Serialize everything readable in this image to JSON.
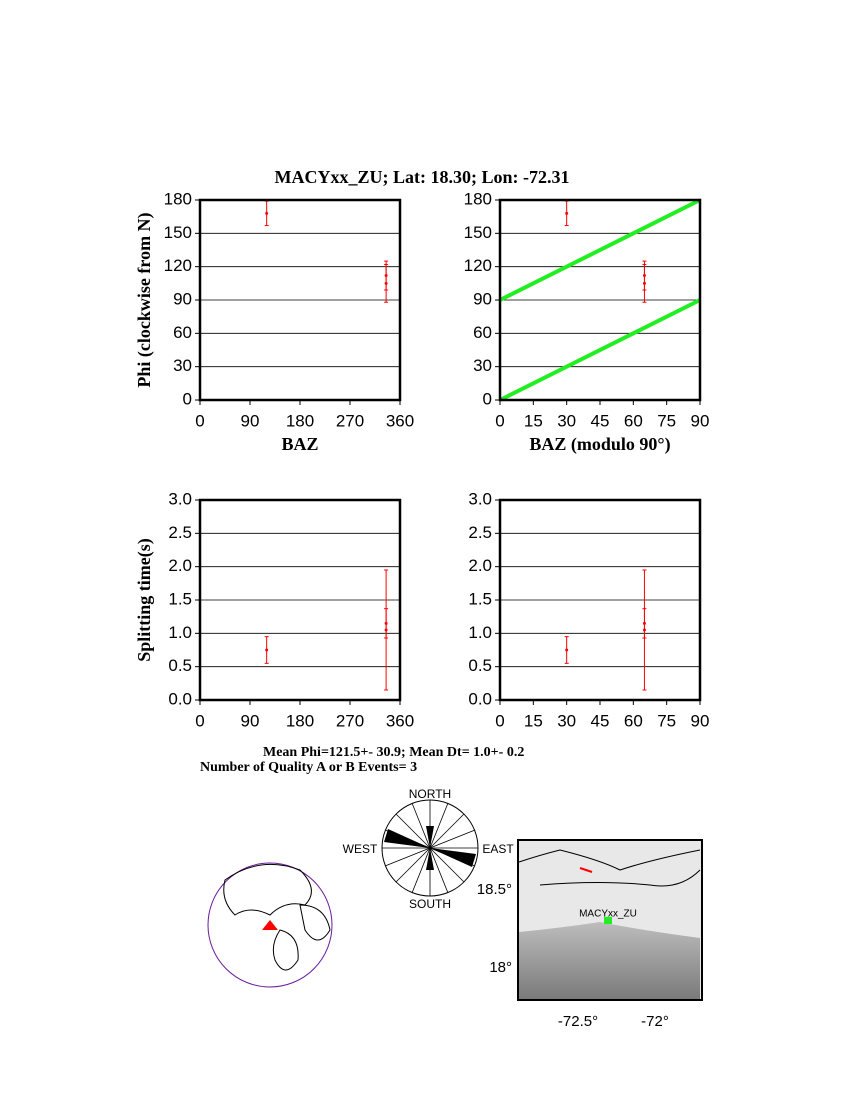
{
  "title": "MACYxx_ZU; Lat:  18.30;  Lon:  -72.31",
  "chart_data": [
    {
      "type": "scatter",
      "xlabel": "BAZ",
      "ylabel": "Phi (clockwise from N)",
      "xlim": [
        0,
        360
      ],
      "xticks": [
        0,
        90,
        180,
        270,
        360
      ],
      "ylim": [
        0,
        180
      ],
      "yticks": [
        0,
        30,
        60,
        90,
        120,
        150,
        180
      ],
      "grid": true,
      "series": [
        {
          "type": "errorbar",
          "color": "#ff0000",
          "x": [
            120,
            335,
            335
          ],
          "values": [
            168,
            112,
            105
          ],
          "errors": [
            11,
            13,
            17
          ]
        }
      ]
    },
    {
      "type": "scatter",
      "xlabel": "BAZ (modulo 90°)",
      "xlim": [
        0,
        90
      ],
      "xticks": [
        0,
        15,
        30,
        45,
        60,
        75,
        90
      ],
      "ylim": [
        0,
        180
      ],
      "yticks": [
        0,
        30,
        60,
        90,
        120,
        150,
        180
      ],
      "grid": true,
      "series": [
        {
          "type": "errorbar",
          "color": "#ff0000",
          "x": [
            30,
            65,
            65
          ],
          "values": [
            168,
            112,
            105
          ],
          "errors": [
            11,
            13,
            17
          ]
        },
        {
          "type": "line",
          "color": "#22ee22",
          "x": [
            0,
            90
          ],
          "values": [
            0,
            90
          ]
        },
        {
          "type": "line",
          "color": "#22ee22",
          "x": [
            0,
            90
          ],
          "values": [
            90,
            180
          ]
        }
      ]
    },
    {
      "type": "scatter",
      "ylabel": "Splitting time(s)",
      "xlim": [
        0,
        360
      ],
      "xticks": [
        0,
        90,
        180,
        270,
        360
      ],
      "ylim": [
        0,
        3
      ],
      "yticks": [
        {
          "value": 0,
          "label": "0.0"
        },
        0.5,
        {
          "value": 1,
          "label": "1.0"
        },
        1.5,
        {
          "value": 2,
          "label": "2.0"
        },
        2.5,
        {
          "value": 3,
          "label": "3.0"
        }
      ],
      "grid": true,
      "series": [
        {
          "type": "errorbar",
          "color": "#ff0000",
          "x": [
            120,
            335,
            335
          ],
          "values": [
            0.75,
            1.15,
            1.05
          ],
          "errors": [
            0.2,
            0.22,
            0.9
          ]
        }
      ]
    },
    {
      "type": "scatter",
      "xlim": [
        0,
        90
      ],
      "xticks": [
        0,
        15,
        30,
        45,
        60,
        75,
        90
      ],
      "ylim": [
        0,
        3
      ],
      "yticks": [
        {
          "value": 0,
          "label": "0.0"
        },
        0.5,
        {
          "value": 1,
          "label": "1.0"
        },
        1.5,
        {
          "value": 2,
          "label": "2.0"
        },
        2.5,
        {
          "value": 3,
          "label": "3.0"
        }
      ],
      "grid": true,
      "series": [
        {
          "type": "errorbar",
          "color": "#ff0000",
          "x": [
            30,
            65,
            65
          ],
          "values": [
            0.75,
            1.15,
            1.05
          ],
          "errors": [
            0.2,
            0.22,
            0.9
          ]
        }
      ]
    }
  ],
  "summary": [
    "Mean Phi=121.5+- 30.9; Mean Dt=  1.0+-  0.2",
    "Number of Quality A or B Events=  3"
  ],
  "rose": {
    "north": "NORTH",
    "west": "WEST",
    "east": "EAST",
    "south": "SOUTH"
  },
  "map": {
    "station": "MACYxx_ZU",
    "lat_labels": [
      "18.5°",
      "18°"
    ],
    "lon_labels": [
      "-72.5°",
      "-72°"
    ]
  }
}
